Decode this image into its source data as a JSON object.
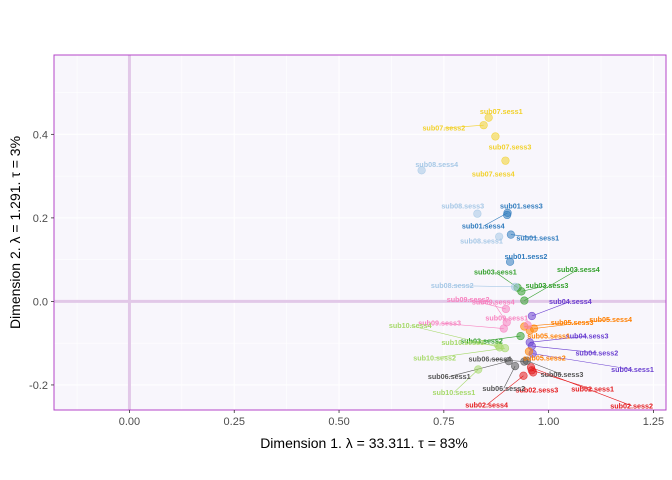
{
  "chart_data": {
    "type": "scatter",
    "xlabel": "Dimension 1.   λ = 33.311.  τ = 83%",
    "ylabel": "Dimension 2.   λ = 1.291.  τ = 3%",
    "xlim": [
      -0.18,
      1.28
    ],
    "ylim": [
      -0.26,
      0.59
    ],
    "x_ticks": [
      0.0,
      0.25,
      0.5,
      0.75,
      1.0,
      1.25
    ],
    "x_tick_labels": [
      "0.00",
      "0.25",
      "0.50",
      "0.75",
      "1.00",
      "1.25"
    ],
    "y_ticks": [
      -0.2,
      0.0,
      0.2,
      0.4
    ],
    "y_tick_labels": [
      "-0.2",
      "0.0",
      "0.2",
      "0.4"
    ],
    "reference_lines": {
      "x": 0,
      "y": 0
    },
    "grid": true,
    "legend": "none",
    "colors": {
      "background": "#f8f6fc",
      "border": "#b444c8",
      "reference_line": "#e2c8e8",
      "sub01": "#2f7bbd",
      "sub02": "#e41a1c",
      "sub03": "#33a02c",
      "sub04": "#6a3fd0",
      "sub05": "#ff7f00",
      "sub06": "#555555",
      "sub07": "#f2d12a",
      "sub08": "#a6c8e6",
      "sub09": "#f781bf",
      "sub10": "#a6d96a"
    },
    "points": [
      {
        "label": "sub01.sess1",
        "group": "sub01",
        "x": 0.91,
        "y": 0.16,
        "lx": 0.974,
        "ly": 0.152
      },
      {
        "label": "sub01.sess2",
        "group": "sub01",
        "x": 0.908,
        "y": 0.095,
        "lx": 0.946,
        "ly": 0.108
      },
      {
        "label": "sub01.sess3",
        "group": "sub01",
        "x": 0.901,
        "y": 0.207,
        "lx": 0.935,
        "ly": 0.228
      },
      {
        "label": "sub01.sess4",
        "group": "sub01",
        "x": 0.902,
        "y": 0.212,
        "lx": 0.844,
        "ly": 0.18
      },
      {
        "label": "sub02.sess1",
        "group": "sub02",
        "x": 0.96,
        "y": -0.165,
        "lx": 1.105,
        "ly": -0.21
      },
      {
        "label": "sub02.sess2",
        "group": "sub02",
        "x": 0.958,
        "y": -0.158,
        "lx": 1.198,
        "ly": -0.25
      },
      {
        "label": "sub02.sess3",
        "group": "sub02",
        "x": 0.963,
        "y": -0.17,
        "lx": 0.972,
        "ly": -0.212
      },
      {
        "label": "sub02.sess4",
        "group": "sub02",
        "x": 0.94,
        "y": -0.178,
        "lx": 0.852,
        "ly": -0.248
      },
      {
        "label": "sub03.sess1",
        "group": "sub03",
        "x": 0.926,
        "y": 0.033,
        "lx": 0.873,
        "ly": 0.07
      },
      {
        "label": "sub03.sess2",
        "group": "sub03",
        "x": 0.933,
        "y": -0.083,
        "lx": 0.84,
        "ly": -0.095
      },
      {
        "label": "sub03.sess3",
        "group": "sub03",
        "x": 0.935,
        "y": 0.024,
        "lx": 0.996,
        "ly": 0.038
      },
      {
        "label": "sub03.sess4",
        "group": "sub03",
        "x": 0.942,
        "y": 0.002,
        "lx": 1.071,
        "ly": 0.077
      },
      {
        "label": "sub04.sess1",
        "group": "sub04",
        "x": 0.962,
        "y": -0.125,
        "lx": 1.2,
        "ly": -0.163
      },
      {
        "label": "sub04.sess2",
        "group": "sub04",
        "x": 0.96,
        "y": -0.107,
        "lx": 1.115,
        "ly": -0.123
      },
      {
        "label": "sub04.sess3",
        "group": "sub04",
        "x": 0.955,
        "y": -0.098,
        "lx": 1.092,
        "ly": -0.083
      },
      {
        "label": "sub04.sess4",
        "group": "sub04",
        "x": 0.96,
        "y": -0.035,
        "lx": 1.052,
        "ly": 0.0
      },
      {
        "label": "sub05.sess1",
        "group": "sub05",
        "x": 0.955,
        "y": -0.07,
        "lx": 1.0,
        "ly": -0.083
      },
      {
        "label": "sub05.sess2",
        "group": "sub05",
        "x": 0.953,
        "y": -0.12,
        "lx": 0.99,
        "ly": -0.135
      },
      {
        "label": "sub05.sess3",
        "group": "sub05",
        "x": 0.942,
        "y": -0.06,
        "lx": 1.056,
        "ly": -0.05
      },
      {
        "label": "sub05.sess4",
        "group": "sub05",
        "x": 0.965,
        "y": -0.065,
        "lx": 1.148,
        "ly": -0.043
      },
      {
        "label": "sub06.sess1",
        "group": "sub06",
        "x": 0.905,
        "y": -0.143,
        "lx": 0.763,
        "ly": -0.18
      },
      {
        "label": "sub06.sess2",
        "group": "sub06",
        "x": 0.92,
        "y": -0.155,
        "lx": 0.893,
        "ly": -0.208
      },
      {
        "label": "sub06.sess3",
        "group": "sub06",
        "x": 0.948,
        "y": -0.142,
        "lx": 1.032,
        "ly": -0.175
      },
      {
        "label": "sub06.sess4",
        "group": "sub06",
        "x": 0.942,
        "y": -0.144,
        "lx": 0.86,
        "ly": -0.138
      },
      {
        "label": "sub07.sess1",
        "group": "sub07",
        "x": 0.857,
        "y": 0.44,
        "lx": 0.887,
        "ly": 0.455
      },
      {
        "label": "sub07.sess2",
        "group": "sub07",
        "x": 0.845,
        "y": 0.422,
        "lx": 0.75,
        "ly": 0.415
      },
      {
        "label": "sub07.sess3",
        "group": "sub07",
        "x": 0.873,
        "y": 0.395,
        "lx": 0.908,
        "ly": 0.37
      },
      {
        "label": "sub07.sess4",
        "group": "sub07",
        "x": 0.897,
        "y": 0.337,
        "lx": 0.868,
        "ly": 0.305
      },
      {
        "label": "sub08.sess1",
        "group": "sub08",
        "x": 0.882,
        "y": 0.155,
        "lx": 0.84,
        "ly": 0.145
      },
      {
        "label": "sub08.sess2",
        "group": "sub08",
        "x": 0.92,
        "y": 0.035,
        "lx": 0.77,
        "ly": 0.038
      },
      {
        "label": "sub08.sess3",
        "group": "sub08",
        "x": 0.83,
        "y": 0.21,
        "lx": 0.795,
        "ly": 0.228
      },
      {
        "label": "sub08.sess4",
        "group": "sub08",
        "x": 0.697,
        "y": 0.314,
        "lx": 0.733,
        "ly": 0.328
      },
      {
        "label": "sub09.sess1",
        "group": "sub09",
        "x": 0.95,
        "y": -0.057,
        "lx": 0.9,
        "ly": -0.04
      },
      {
        "label": "sub09.sess2",
        "group": "sub09",
        "x": 0.898,
        "y": -0.018,
        "lx": 0.808,
        "ly": 0.005
      },
      {
        "label": "sub09.sess3",
        "group": "sub09",
        "x": 0.893,
        "y": -0.065,
        "lx": 0.74,
        "ly": -0.052
      },
      {
        "label": "sub09.sess4",
        "group": "sub09",
        "x": 0.9,
        "y": -0.05,
        "lx": 0.868,
        "ly": -0.002
      },
      {
        "label": "sub10.sess1",
        "group": "sub10",
        "x": 0.832,
        "y": -0.163,
        "lx": 0.774,
        "ly": -0.218
      },
      {
        "label": "sub10.sess2",
        "group": "sub10",
        "x": 0.896,
        "y": -0.112,
        "lx": 0.728,
        "ly": -0.135
      },
      {
        "label": "sub10.sess3",
        "group": "sub10",
        "x": 0.88,
        "y": -0.105,
        "lx": 0.795,
        "ly": -0.098
      },
      {
        "label": "sub10.sess4",
        "group": "sub10",
        "x": 0.883,
        "y": -0.11,
        "lx": 0.67,
        "ly": -0.058
      }
    ]
  }
}
